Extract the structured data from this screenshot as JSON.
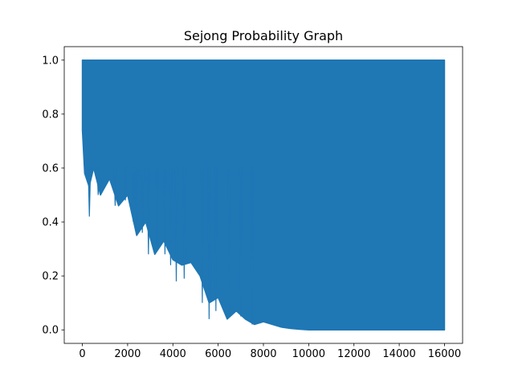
{
  "chart_data": {
    "type": "line",
    "title": "Sejong Probability Graph",
    "xlabel": "",
    "ylabel": "",
    "xlim": [
      -800,
      16800
    ],
    "ylim": [
      -0.05,
      1.05
    ],
    "x_ticks": [
      0,
      2000,
      4000,
      6000,
      8000,
      10000,
      12000,
      14000,
      16000
    ],
    "x_tick_labels": [
      "0",
      "2000",
      "4000",
      "6000",
      "8000",
      "10000",
      "12000",
      "14000",
      "16000"
    ],
    "y_ticks": [
      0.0,
      0.2,
      0.4,
      0.6,
      0.8,
      1.0
    ],
    "y_tick_labels": [
      "0.0",
      "0.2",
      "0.4",
      "0.6",
      "0.8",
      "1.0"
    ],
    "grid": false,
    "series_color": "#1f77b4",
    "series": [
      {
        "x": [
          0,
          100,
          300,
          500,
          800,
          1200,
          1600,
          2000,
          2400,
          2800,
          3200,
          3600,
          4000,
          4400,
          4800,
          5200,
          5600,
          6000,
          6400,
          6800,
          7200,
          7600,
          8000,
          8400,
          8800,
          9200,
          9600,
          10000,
          11000,
          12000,
          13000,
          14000,
          15000,
          16000
        ],
        "lower_envelope": [
          0.74,
          0.58,
          0.53,
          0.6,
          0.5,
          0.56,
          0.46,
          0.5,
          0.35,
          0.4,
          0.28,
          0.33,
          0.26,
          0.24,
          0.25,
          0.2,
          0.1,
          0.12,
          0.04,
          0.07,
          0.04,
          0.02,
          0.03,
          0.02,
          0.01,
          0.005,
          0.002,
          0.0,
          0.0,
          0.0,
          0.0,
          0.0,
          0.0,
          0.0
        ],
        "upper_envelope": 1.0,
        "spikes": [
          {
            "x": 310,
            "y": 0.42
          },
          {
            "x": 700,
            "y": 0.5
          },
          {
            "x": 1450,
            "y": 0.46
          },
          {
            "x": 1900,
            "y": 0.48
          },
          {
            "x": 2250,
            "y": 0.4
          },
          {
            "x": 2400,
            "y": 0.35
          },
          {
            "x": 2650,
            "y": 0.36
          },
          {
            "x": 2920,
            "y": 0.28
          },
          {
            "x": 3300,
            "y": 0.31
          },
          {
            "x": 3650,
            "y": 0.28
          },
          {
            "x": 3900,
            "y": 0.24
          },
          {
            "x": 4150,
            "y": 0.18
          },
          {
            "x": 4500,
            "y": 0.19
          },
          {
            "x": 5300,
            "y": 0.1
          },
          {
            "x": 5600,
            "y": 0.04
          },
          {
            "x": 5900,
            "y": 0.07
          },
          {
            "x": 6500,
            "y": 0.05
          },
          {
            "x": 7000,
            "y": 0.05
          },
          {
            "x": 7500,
            "y": 0.02
          }
        ]
      }
    ]
  }
}
